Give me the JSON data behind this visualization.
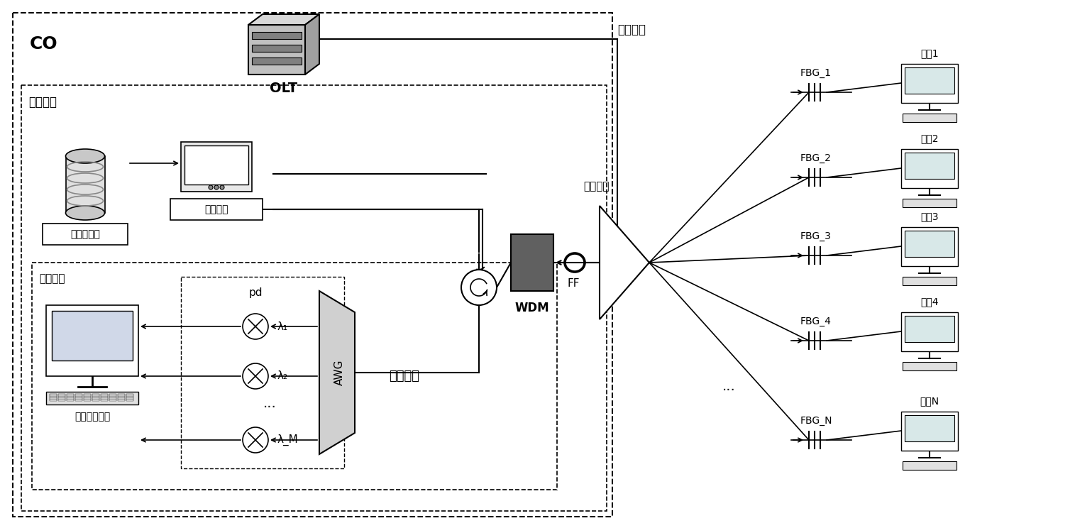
{
  "bg_color": "#ffffff",
  "border_color": "#000000",
  "text_color": "#000000",
  "co_label": "CO",
  "olt_label": "OLT",
  "comm_wave_label": "通信波段",
  "detection_sys_label": "检测系统",
  "pulse_gen_label": "脉冲发生器",
  "tunable_src_label": "可调光源",
  "recv_module_label": "接收模块",
  "awg_label": "AWG",
  "pd_label": "pd",
  "lambda1_label": "λ₁",
  "lambda2_label": "λ₂",
  "lambdaM_label": "λ_M",
  "detect_sig_id_label": "检测信号识别",
  "detect_sig_label": "检测信号",
  "wdm_label": "WDM",
  "ff_label": "FF",
  "remote_node_label": "远端节点",
  "fbg_labels": [
    "FBG_1",
    "FBG_2",
    "FBG_3",
    "FBG_4",
    "FBG_N"
  ],
  "user_labels": [
    "用户1",
    "用户2",
    "用户3",
    "用户4",
    "用户N"
  ],
  "dots_label": "···"
}
